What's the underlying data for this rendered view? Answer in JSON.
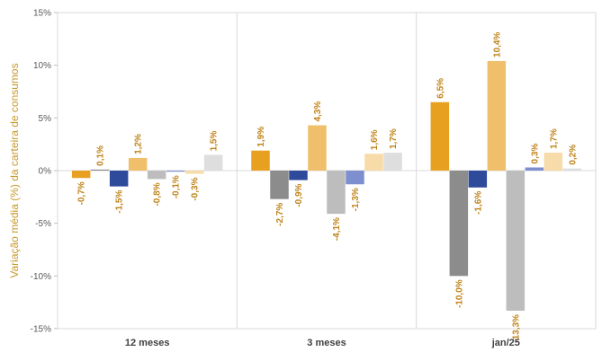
{
  "chart_data": {
    "type": "bar",
    "ylabel": "Variação média (%) da carteira de consumos",
    "ylim": [
      -15,
      15
    ],
    "yticks": [
      -15,
      -10,
      -5,
      0,
      5,
      10,
      15
    ],
    "ytick_labels": [
      "-15%",
      "-10%",
      "-5%",
      "0%",
      "5%",
      "10%",
      "15%"
    ],
    "grid": "vertical separators between groups",
    "groups": [
      {
        "label": "12 meses",
        "values": [
          -0.7,
          0.1,
          -1.5,
          1.2,
          -0.8,
          -0.1,
          -0.3,
          1.5
        ],
        "labels": [
          "-0,7%",
          "0,1%",
          "-1,5%",
          "1,2%",
          "-0,8%",
          "-0,1%",
          "-0,3%",
          "1,5%"
        ]
      },
      {
        "label": "3 meses",
        "values": [
          1.9,
          -2.7,
          -0.9,
          4.3,
          -4.1,
          -1.3,
          1.6,
          1.7
        ],
        "labels": [
          "1,9%",
          "-2,7%",
          "-0,9%",
          "4,3%",
          "-4,1%",
          "-1,3%",
          "1,6%",
          "1,7%"
        ]
      },
      {
        "label": "jan/25",
        "values": [
          6.5,
          -10.0,
          -1.6,
          10.4,
          -13.3,
          0.3,
          1.7,
          0.2
        ],
        "labels": [
          "6,5%",
          "-10,0%",
          "-1,6%",
          "10,4%",
          "-13,3%",
          "0,3%",
          "1,7%",
          "0,2%"
        ]
      }
    ],
    "series_colors": [
      "#e8a020",
      "#8c8c8c",
      "#2e4a9a",
      "#f0bf6c",
      "#bdbdbd",
      "#7d8fcf",
      "#f7dba8",
      "#dedede"
    ],
    "label_color": "#c0841a"
  }
}
